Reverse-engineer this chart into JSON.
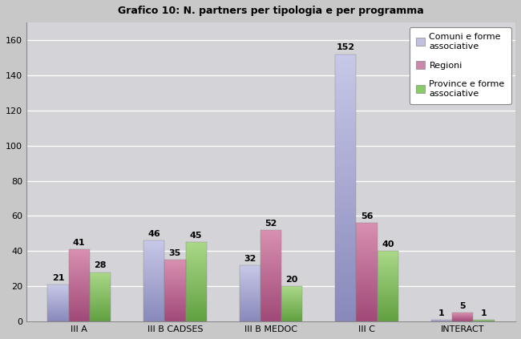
{
  "title": "Grafico 10: N. partners per tipologia e per programma",
  "categories": [
    "III A",
    "III B CADSES",
    "III B MEDOC",
    "III C",
    "INTERACT"
  ],
  "series": [
    {
      "name": "Comuni e forme\nassociative",
      "values": [
        21,
        46,
        32,
        152,
        1
      ],
      "color_top": "#c8c8e8",
      "color_bottom": "#8888bb",
      "legend_color": "#c0c0e0"
    },
    {
      "name": "Regioni",
      "values": [
        41,
        35,
        52,
        56,
        5
      ],
      "color_top": "#d890b0",
      "color_bottom": "#a04878",
      "legend_color": "#cc88aa"
    },
    {
      "name": "Province e forme\nassociative",
      "values": [
        28,
        45,
        20,
        40,
        1
      ],
      "color_top": "#aad888",
      "color_bottom": "#60a040",
      "legend_color": "#88cc66"
    }
  ],
  "ylim": [
    0,
    170
  ],
  "yticks": [
    0,
    20,
    40,
    60,
    80,
    100,
    120,
    140,
    160
  ],
  "bar_width": 0.22,
  "background_color": "#c8c8c8",
  "plot_background_color": "#d4d4d8",
  "grid_color": "#ffffff",
  "title_fontsize": 9,
  "legend_fontsize": 8,
  "tick_fontsize": 8,
  "value_fontsize": 8
}
